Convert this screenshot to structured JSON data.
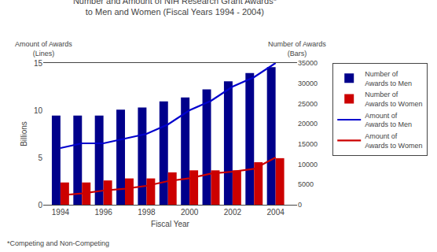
{
  "chart_data": {
    "type": "bar",
    "title": "Number and Amount of NIH Research Grant Awards*",
    "subtitle": "to Men and Women (Fiscal Years 1994 - 2004)",
    "xlabel": "Fiscal Year",
    "ylabel": "Billions",
    "annotations": [
      "Amount of Awards\n(Lines)",
      "Number of Awards\n(Bars)",
      "*Competing and Non-Competing"
    ],
    "x": [
      1994,
      1995,
      1996,
      1997,
      1998,
      1999,
      2000,
      2001,
      2002,
      2003,
      2004
    ],
    "series": [
      {
        "name": "Number of\nAwards to Men",
        "type": "bar",
        "axis": "y2",
        "color": "#00008B",
        "values": [
          22000,
          22000,
          22000,
          23500,
          24000,
          25500,
          26500,
          28500,
          30500,
          32500,
          34000
        ]
      },
      {
        "name": "Number of\nAwards to Women",
        "type": "bar",
        "axis": "y2",
        "color": "#CC0000",
        "values": [
          5500,
          5500,
          6000,
          6500,
          6500,
          8000,
          8500,
          8500,
          8500,
          10500,
          11500
        ]
      },
      {
        "name": "Amount of\nAwards to Men",
        "type": "line",
        "color": "#0000CD",
        "values": [
          6.0,
          6.5,
          6.5,
          7.0,
          7.5,
          8.5,
          10.0,
          11.0,
          12.5,
          13.5,
          15.0
        ]
      },
      {
        "name": "Amount of\nAwards to Women",
        "type": "line",
        "color": "#CC0000",
        "values": [
          1.0,
          1.2,
          1.5,
          1.7,
          2.0,
          2.5,
          2.8,
          3.3,
          3.5,
          3.8,
          5.0
        ]
      }
    ],
    "xlim": [
      1993.2,
      2005.0
    ],
    "xticks": [
      1994,
      1996,
      1998,
      2000,
      2002,
      2004
    ],
    "ylim": [
      0,
      15
    ],
    "yticks": [
      0,
      5,
      10,
      15
    ],
    "y2lim": [
      0,
      35000
    ],
    "y2ticks": [
      0,
      5000,
      10000,
      15000,
      20000,
      25000,
      30000,
      35000
    ],
    "grid": false,
    "legend": "right"
  }
}
